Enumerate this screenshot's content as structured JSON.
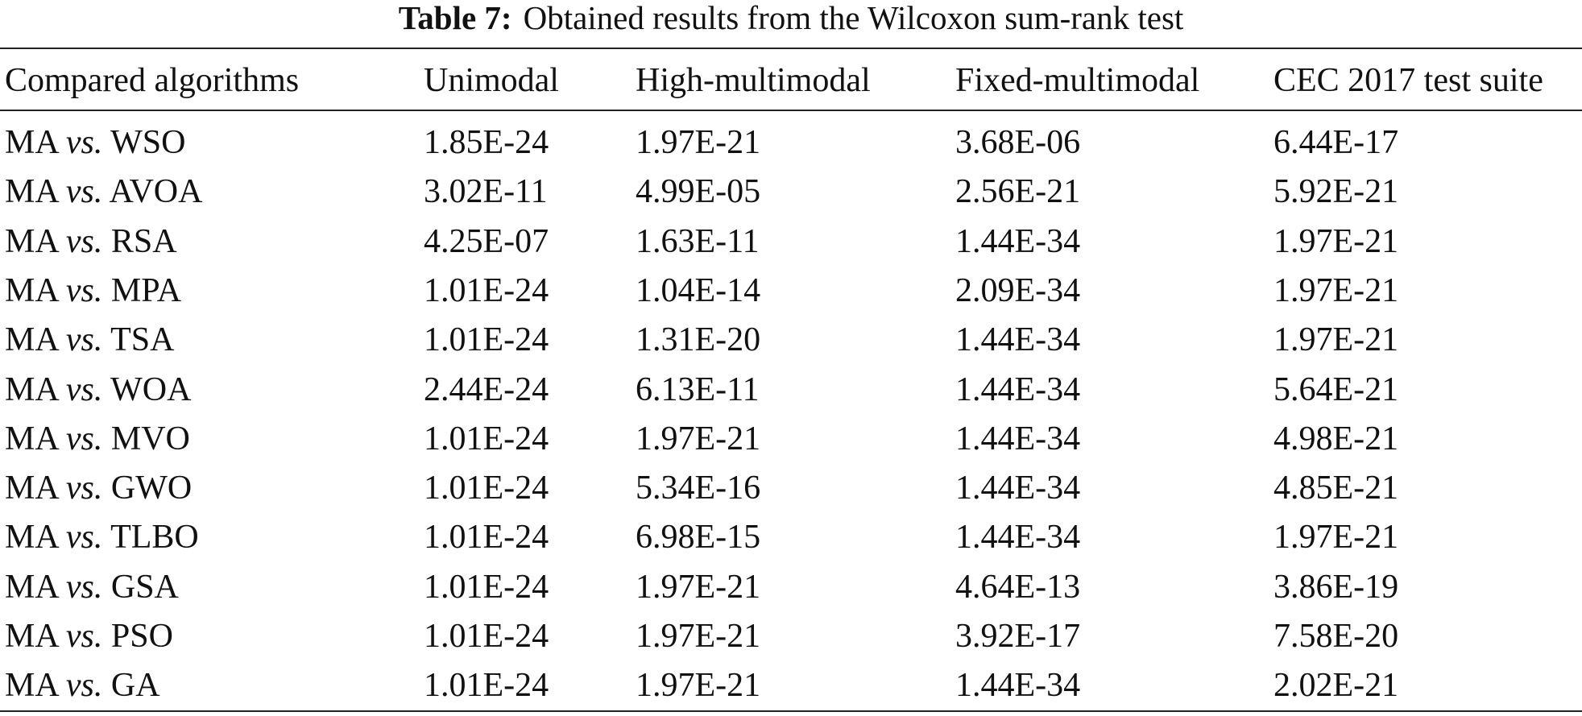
{
  "caption": {
    "label": "Table 7:",
    "text": "Obtained results from the Wilcoxon sum-rank test"
  },
  "table": {
    "header": [
      "Compared algorithms",
      "Unimodal",
      "High-multimodal",
      "Fixed-multimodal",
      "CEC 2017 test suite"
    ],
    "rows": [
      [
        {
          "left": "MA",
          "op": "vs.",
          "right": "WSO"
        },
        "1.85E-24",
        "1.97E-21",
        "3.68E-06",
        "6.44E-17"
      ],
      [
        {
          "left": "MA",
          "op": "vs.",
          "right": "AVOA"
        },
        "3.02E-11",
        "4.99E-05",
        "2.56E-21",
        "5.92E-21"
      ],
      [
        {
          "left": "MA",
          "op": "vs.",
          "right": "RSA"
        },
        "4.25E-07",
        "1.63E-11",
        "1.44E-34",
        "1.97E-21"
      ],
      [
        {
          "left": "MA",
          "op": "vs.",
          "right": "MPA"
        },
        "1.01E-24",
        "1.04E-14",
        "2.09E-34",
        "1.97E-21"
      ],
      [
        {
          "left": "MA",
          "op": "vs.",
          "right": "TSA"
        },
        "1.01E-24",
        "1.31E-20",
        "1.44E-34",
        "1.97E-21"
      ],
      [
        {
          "left": "MA",
          "op": "vs.",
          "right": "WOA"
        },
        "2.44E-24",
        "6.13E-11",
        "1.44E-34",
        "5.64E-21"
      ],
      [
        {
          "left": "MA",
          "op": "vs.",
          "right": "MVO"
        },
        "1.01E-24",
        "1.97E-21",
        "1.44E-34",
        "4.98E-21"
      ],
      [
        {
          "left": "MA",
          "op": "vs.",
          "right": "GWO"
        },
        "1.01E-24",
        "5.34E-16",
        "1.44E-34",
        "4.85E-21"
      ],
      [
        {
          "left": "MA",
          "op": "vs.",
          "right": "TLBO"
        },
        "1.01E-24",
        "6.98E-15",
        "1.44E-34",
        "1.97E-21"
      ],
      [
        {
          "left": "MA",
          "op": "vs.",
          "right": "GSA"
        },
        "1.01E-24",
        "1.97E-21",
        "4.64E-13",
        "3.86E-19"
      ],
      [
        {
          "left": "MA",
          "op": "vs.",
          "right": "PSO"
        },
        "1.01E-24",
        "1.97E-21",
        "3.92E-17",
        "7.58E-20"
      ],
      [
        {
          "left": "MA",
          "op": "vs.",
          "right": "GA"
        },
        "1.01E-24",
        "1.97E-21",
        "1.44E-34",
        "2.02E-21"
      ]
    ]
  }
}
